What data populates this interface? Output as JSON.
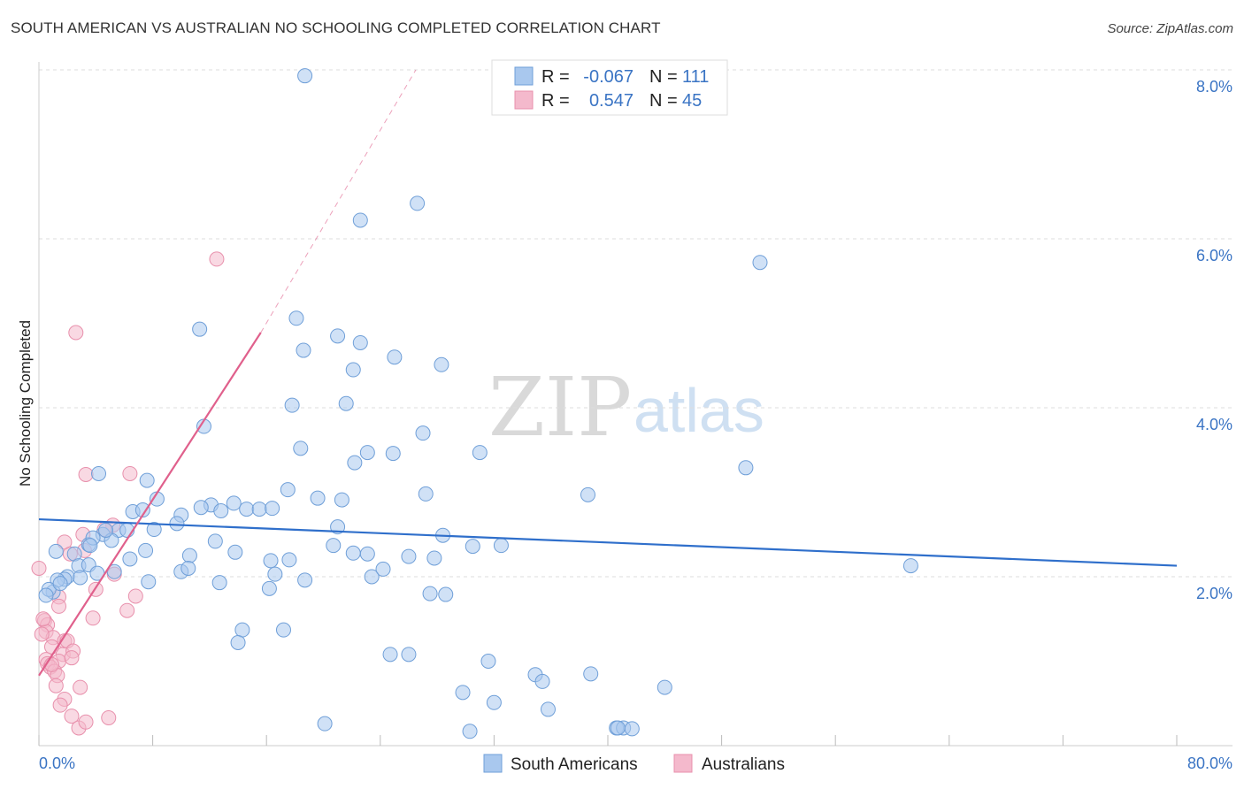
{
  "title": "SOUTH AMERICAN VS AUSTRALIAN NO SCHOOLING COMPLETED CORRELATION CHART",
  "source": "Source: ZipAtlas.com",
  "watermark": {
    "zip": "ZIP",
    "atlas": "atlas"
  },
  "colors": {
    "blue_fill": "#a9c8ee",
    "blue_stroke": "#6f9fd8",
    "blue_line": "#2f6fcb",
    "pink_fill": "#f4b9cc",
    "pink_stroke": "#e890ac",
    "pink_line": "#e0608c",
    "grid": "#dddddd",
    "axis_label": "#3a74c4"
  },
  "legend": {
    "rows": [
      {
        "r_label": "R =",
        "r_value": "-0.067",
        "n_label": "N =",
        "n_value": "111",
        "series": "blue"
      },
      {
        "r_label": "R =",
        "r_value": "0.547",
        "n_label": "N =",
        "n_value": "45",
        "series": "pink"
      }
    ]
  },
  "bottom_legend": [
    "South Americans",
    "Australians"
  ],
  "chart_data": {
    "type": "scatter",
    "title": "SOUTH AMERICAN VS AUSTRALIAN NO SCHOOLING COMPLETED CORRELATION CHART",
    "xlabel": "",
    "ylabel": "No Schooling Completed",
    "xlim": [
      0,
      80
    ],
    "ylim": [
      0,
      8
    ],
    "x_tick_labels": [
      "0.0%",
      "80.0%"
    ],
    "y_ticks": [
      2,
      4,
      6,
      8
    ],
    "y_tick_labels": [
      "2.0%",
      "4.0%",
      "6.0%",
      "8.0%"
    ],
    "grid": true,
    "legend_position": "top-center",
    "series": [
      {
        "name": "South Americans",
        "color": "blue",
        "R": -0.067,
        "N": 111,
        "trend": {
          "x0": 0,
          "y0": 2.68,
          "x1": 80,
          "y1": 2.13
        },
        "points": [
          [
            18.7,
            7.93
          ],
          [
            22.6,
            6.22
          ],
          [
            26.6,
            6.42
          ],
          [
            50.7,
            5.72
          ],
          [
            11.3,
            4.93
          ],
          [
            18.1,
            5.06
          ],
          [
            21.0,
            4.85
          ],
          [
            22.6,
            4.77
          ],
          [
            25.0,
            4.6
          ],
          [
            28.3,
            4.51
          ],
          [
            18.6,
            4.68
          ],
          [
            22.1,
            4.45
          ],
          [
            17.8,
            4.03
          ],
          [
            21.6,
            4.05
          ],
          [
            11.6,
            3.78
          ],
          [
            27.0,
            3.7
          ],
          [
            18.4,
            3.52
          ],
          [
            23.1,
            3.47
          ],
          [
            24.9,
            3.46
          ],
          [
            31.0,
            3.47
          ],
          [
            22.2,
            3.35
          ],
          [
            49.7,
            3.29
          ],
          [
            4.2,
            3.22
          ],
          [
            7.6,
            3.14
          ],
          [
            17.5,
            3.03
          ],
          [
            27.2,
            2.98
          ],
          [
            38.6,
            2.97
          ],
          [
            19.6,
            2.93
          ],
          [
            12.1,
            2.85
          ],
          [
            13.7,
            2.87
          ],
          [
            6.6,
            2.77
          ],
          [
            7.3,
            2.79
          ],
          [
            10.0,
            2.73
          ],
          [
            9.7,
            2.63
          ],
          [
            11.4,
            2.82
          ],
          [
            12.8,
            2.78
          ],
          [
            14.6,
            2.8
          ],
          [
            15.5,
            2.8
          ],
          [
            16.4,
            2.81
          ],
          [
            21.3,
            2.91
          ],
          [
            8.3,
            2.92
          ],
          [
            21.0,
            2.59
          ],
          [
            5.6,
            2.55
          ],
          [
            4.5,
            2.5
          ],
          [
            6.2,
            2.55
          ],
          [
            5.1,
            2.43
          ],
          [
            3.5,
            2.38
          ],
          [
            1.2,
            2.3
          ],
          [
            2.5,
            2.27
          ],
          [
            3.8,
            2.46
          ],
          [
            7.5,
            2.31
          ],
          [
            12.4,
            2.42
          ],
          [
            17.6,
            2.2
          ],
          [
            20.7,
            2.37
          ],
          [
            23.1,
            2.27
          ],
          [
            26.0,
            2.24
          ],
          [
            27.8,
            2.22
          ],
          [
            28.4,
            2.49
          ],
          [
            32.5,
            2.37
          ],
          [
            30.5,
            2.36
          ],
          [
            22.1,
            2.28
          ],
          [
            23.4,
            2.0
          ],
          [
            24.2,
            2.09
          ],
          [
            6.4,
            2.21
          ],
          [
            10.6,
            2.25
          ],
          [
            13.8,
            2.29
          ],
          [
            16.3,
            2.19
          ],
          [
            2.0,
            2.0
          ],
          [
            2.8,
            2.13
          ],
          [
            3.5,
            2.14
          ],
          [
            1.8,
            1.97
          ],
          [
            2.9,
            1.99
          ],
          [
            1.3,
            1.96
          ],
          [
            4.1,
            2.04
          ],
          [
            5.3,
            2.06
          ],
          [
            10.0,
            2.06
          ],
          [
            10.5,
            2.1
          ],
          [
            7.7,
            1.94
          ],
          [
            12.7,
            1.93
          ],
          [
            16.6,
            2.03
          ],
          [
            16.2,
            1.86
          ],
          [
            18.7,
            1.96
          ],
          [
            27.5,
            1.8
          ],
          [
            28.6,
            1.79
          ],
          [
            61.3,
            2.13
          ],
          [
            1.0,
            1.82
          ],
          [
            0.7,
            1.85
          ],
          [
            0.5,
            1.78
          ],
          [
            14.3,
            1.37
          ],
          [
            17.2,
            1.37
          ],
          [
            14.0,
            1.22
          ],
          [
            24.7,
            1.08
          ],
          [
            26.0,
            1.08
          ],
          [
            31.6,
            1.0
          ],
          [
            34.9,
            0.84
          ],
          [
            35.4,
            0.76
          ],
          [
            38.8,
            0.85
          ],
          [
            44.0,
            0.69
          ],
          [
            29.8,
            0.63
          ],
          [
            32.0,
            0.51
          ],
          [
            35.8,
            0.43
          ],
          [
            20.1,
            0.26
          ],
          [
            30.3,
            0.17
          ],
          [
            40.6,
            0.21
          ],
          [
            41.1,
            0.21
          ],
          [
            40.7,
            0.21
          ],
          [
            41.7,
            0.2
          ],
          [
            1.5,
            1.92
          ],
          [
            8.1,
            2.56
          ],
          [
            3.6,
            2.37
          ],
          [
            4.7,
            2.55
          ]
        ]
      },
      {
        "name": "Australians",
        "color": "pink",
        "R": 0.547,
        "N": 45,
        "trend": {
          "x0": 0,
          "y0": 0.83,
          "x1": 15.6,
          "y1": 4.89
        },
        "trend_dashed_to": {
          "x1": 26.5,
          "y1": 8.0
        },
        "points": [
          [
            12.5,
            5.76
          ],
          [
            2.6,
            4.89
          ],
          [
            3.3,
            3.21
          ],
          [
            6.4,
            3.22
          ],
          [
            5.2,
            2.61
          ],
          [
            4.6,
            2.56
          ],
          [
            3.1,
            2.5
          ],
          [
            1.8,
            2.41
          ],
          [
            2.2,
            2.27
          ],
          [
            3.2,
            2.31
          ],
          [
            5.3,
            2.03
          ],
          [
            0.0,
            2.1
          ],
          [
            4.0,
            1.85
          ],
          [
            6.8,
            1.77
          ],
          [
            1.4,
            1.76
          ],
          [
            1.4,
            1.65
          ],
          [
            6.2,
            1.6
          ],
          [
            3.8,
            1.51
          ],
          [
            0.4,
            1.48
          ],
          [
            0.6,
            1.43
          ],
          [
            0.5,
            1.35
          ],
          [
            1.0,
            1.28
          ],
          [
            1.8,
            1.24
          ],
          [
            2.0,
            1.24
          ],
          [
            0.9,
            1.17
          ],
          [
            1.7,
            1.08
          ],
          [
            2.4,
            1.12
          ],
          [
            0.5,
            1.02
          ],
          [
            1.4,
            1.0
          ],
          [
            0.6,
            0.97
          ],
          [
            2.3,
            1.04
          ],
          [
            0.8,
            0.93
          ],
          [
            1.1,
            0.88
          ],
          [
            1.3,
            0.83
          ],
          [
            1.2,
            0.71
          ],
          [
            2.9,
            0.69
          ],
          [
            1.8,
            0.55
          ],
          [
            1.5,
            0.48
          ],
          [
            2.3,
            0.35
          ],
          [
            4.9,
            0.33
          ],
          [
            2.8,
            0.21
          ],
          [
            3.3,
            0.28
          ],
          [
            0.9,
            0.96
          ],
          [
            0.2,
            1.32
          ],
          [
            0.3,
            1.5
          ]
        ]
      }
    ]
  }
}
